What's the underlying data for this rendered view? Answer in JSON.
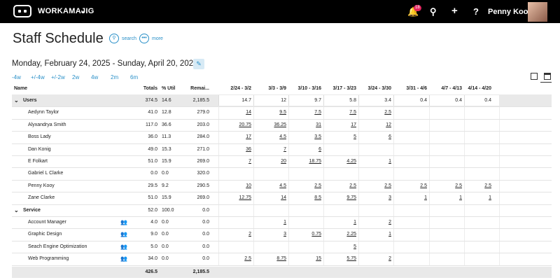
{
  "app": {
    "brand": "WORKAMAJIG",
    "notifications": "18",
    "user": "Penny Kooy"
  },
  "page": {
    "title": "Staff Schedule",
    "search_label": "search",
    "more_label": "more",
    "date_range": "Monday, February 24, 2025 - Sunday, April 20, 2025",
    "ranges": [
      "-4w",
      "+/-4w",
      "+/-2w",
      "2w",
      "4w",
      "2m",
      "6m"
    ]
  },
  "table": {
    "headers": {
      "name": "Name",
      "totals": "Totals",
      "util": "% Util",
      "remaining": "Remai...",
      "weeks": [
        "2/24 - 3/2",
        "3/3 - 3/9",
        "3/10 - 3/16",
        "3/17 - 3/23",
        "3/24 - 3/30",
        "3/31 - 4/6",
        "4/7 - 4/13",
        "4/14 - 4/20"
      ]
    },
    "groups": [
      {
        "name": "Users",
        "totals": "374.5",
        "util": "14.6",
        "remaining": "2,185.5",
        "weeks": [
          "14.7",
          "12",
          "9.7",
          "5.8",
          "3.4",
          "0.4",
          "0.4",
          "0.4"
        ],
        "rows": [
          {
            "name": "Aedynn Taylor",
            "totals": "41.0",
            "util": "12.8",
            "remaining": "279.0",
            "weeks": [
              "14",
              "9.5",
              "7.5",
              "7.5",
              "2.5",
              "",
              "",
              ""
            ]
          },
          {
            "name": "Alyxandrya Smith",
            "totals": "117.0",
            "util": "36.6",
            "remaining": "203.0",
            "weeks": [
              "20.75",
              "36.25",
              "31",
              "17",
              "12",
              "",
              "",
              ""
            ]
          },
          {
            "name": "Boss Lady",
            "totals": "36.0",
            "util": "11.3",
            "remaining": "284.0",
            "weeks": [
              "17",
              "4.5",
              "3.5",
              "5",
              "6",
              "",
              "",
              ""
            ]
          },
          {
            "name": "Dan Konig",
            "totals": "49.0",
            "util": "15.3",
            "remaining": "271.0",
            "weeks": [
              "36",
              "7",
              "6",
              "",
              "",
              "",
              "",
              ""
            ]
          },
          {
            "name": "E Folkart",
            "totals": "51.0",
            "util": "15.9",
            "remaining": "269.0",
            "weeks": [
              "7",
              "20",
              "18.75",
              "4.25",
              "1",
              "",
              "",
              ""
            ]
          },
          {
            "name": "Gabriel L Clarke",
            "totals": "0.0",
            "util": "0.0",
            "remaining": "320.0",
            "weeks": [
              "",
              "",
              "",
              "",
              "",
              "",
              "",
              ""
            ]
          },
          {
            "name": "Penny Kooy",
            "totals": "29.5",
            "util": "9.2",
            "remaining": "290.5",
            "weeks": [
              "10",
              "4.5",
              "2.5",
              "2.5",
              "2.5",
              "2.5",
              "2.5",
              "2.5"
            ]
          },
          {
            "name": "Zane Clarke",
            "totals": "51.0",
            "util": "15.9",
            "remaining": "269.0",
            "weeks": [
              "12.75",
              "14",
              "8.5",
              "9.75",
              "3",
              "1",
              "1",
              "1"
            ]
          }
        ]
      },
      {
        "name": "Service",
        "totals": "52.0",
        "util": "100.0",
        "remaining": "0.0",
        "weeks": [
          "",
          "",
          "",
          "",
          "",
          "",
          "",
          ""
        ],
        "rows": [
          {
            "name": "Account Manager",
            "totals": "4.0",
            "util": "0.0",
            "remaining": "0.0",
            "weeks": [
              "",
              "1",
              "",
              "1",
              "2",
              "",
              "",
              ""
            ]
          },
          {
            "name": "Graphic Design",
            "totals": "9.0",
            "util": "0.0",
            "remaining": "0.0",
            "weeks": [
              "2",
              "3",
              "0.75",
              "2.25",
              "1",
              "",
              "",
              ""
            ]
          },
          {
            "name": "Seach Engine Optimization",
            "totals": "5.0",
            "util": "0.0",
            "remaining": "0.0",
            "weeks": [
              "",
              "",
              "",
              "5",
              "",
              "",
              "",
              ""
            ]
          },
          {
            "name": "Web Programming",
            "totals": "34.0",
            "util": "0.0",
            "remaining": "0.0",
            "weeks": [
              "2.5",
              "8.75",
              "15",
              "5.75",
              "2",
              "",
              "",
              ""
            ]
          }
        ]
      }
    ],
    "footer": {
      "totals": "426.5",
      "remaining": "2,185.5"
    }
  },
  "icons": {
    "logo": "robot-logo-icon",
    "bell": "bell-icon",
    "search": "search-icon",
    "add": "plus-icon",
    "help": "help-icon",
    "assign": "assign-people-icon"
  },
  "colors": {
    "accent": "#2a90c8",
    "topbar": "#000000",
    "badge": "#e0245e"
  }
}
